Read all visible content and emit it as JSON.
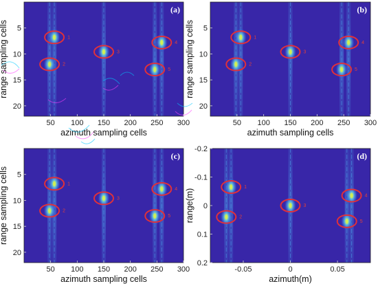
{
  "colors": {
    "background": "#3826a8",
    "target_ring": "#e0303a",
    "streak": "#4a9ee8",
    "hot": "#d6f24a",
    "artifact": "#00c8ff"
  },
  "chart_data": [
    {
      "type": "heatmap",
      "panel": "(a)",
      "xlabel": "azimuth sampling cells",
      "ylabel": "range sampling cells",
      "xlim": [
        0,
        300
      ],
      "ylim": [
        0,
        22
      ],
      "y_reversed": true,
      "xticks": [
        50,
        100,
        150,
        200,
        250,
        300
      ],
      "yticks": [
        5,
        10,
        15,
        20
      ],
      "targets": [
        {
          "id": "1",
          "x": 57,
          "y": 6.8
        },
        {
          "id": "2",
          "x": 48,
          "y": 12.0
        },
        {
          "id": "3",
          "x": 150,
          "y": 9.6
        },
        {
          "id": "4",
          "x": 259,
          "y": 7.8
        },
        {
          "id": "5",
          "x": 246,
          "y": 13.0
        }
      ]
    },
    {
      "type": "heatmap",
      "panel": "(b)",
      "xlabel": "azimuth sampling cells",
      "ylabel": "range sampling cells",
      "xlim": [
        0,
        300
      ],
      "ylim": [
        0,
        22
      ],
      "y_reversed": true,
      "xticks": [
        50,
        100,
        150,
        200,
        250,
        300
      ],
      "yticks": [
        5,
        10,
        15,
        20
      ],
      "targets": [
        {
          "id": "1",
          "x": 57,
          "y": 6.8
        },
        {
          "id": "2",
          "x": 48,
          "y": 12.0
        },
        {
          "id": "3",
          "x": 150,
          "y": 9.6
        },
        {
          "id": "4",
          "x": 259,
          "y": 7.8
        },
        {
          "id": "5",
          "x": 246,
          "y": 13.0
        }
      ]
    },
    {
      "type": "heatmap",
      "panel": "(c)",
      "xlabel": "azimuth sampling cells",
      "ylabel": "range sampling cells",
      "xlim": [
        0,
        300
      ],
      "ylim": [
        0,
        22
      ],
      "y_reversed": true,
      "xticks": [
        50,
        100,
        150,
        200,
        250,
        300
      ],
      "yticks": [
        5,
        10,
        15,
        20
      ],
      "targets": [
        {
          "id": "1",
          "x": 57,
          "y": 6.8
        },
        {
          "id": "2",
          "x": 48,
          "y": 12.0
        },
        {
          "id": "3",
          "x": 150,
          "y": 9.6
        },
        {
          "id": "4",
          "x": 259,
          "y": 7.8
        },
        {
          "id": "5",
          "x": 246,
          "y": 13.0
        }
      ]
    },
    {
      "type": "heatmap",
      "panel": "(d)",
      "xlabel": "azimuth(m)",
      "ylabel": "range(m)",
      "xlim": [
        -0.085,
        0.085
      ],
      "ylim": [
        -0.2,
        0.2
      ],
      "y_reversed": true,
      "xticks": [
        -0.05,
        0,
        0.05
      ],
      "xticklabels": [
        "-0.05",
        "0",
        "0.05"
      ],
      "yticks": [
        -0.2,
        -0.1,
        0,
        0.1,
        0.2
      ],
      "yticklabels": [
        "-0.2",
        "-0.1",
        "0",
        "0.1",
        "0.2"
      ],
      "targets": [
        {
          "id": "1",
          "x": -0.063,
          "y": -0.065
        },
        {
          "id": "2",
          "x": -0.068,
          "y": 0.04
        },
        {
          "id": "3",
          "x": 0.0,
          "y": 0.0
        },
        {
          "id": "4",
          "x": 0.065,
          "y": -0.035
        },
        {
          "id": "5",
          "x": 0.06,
          "y": 0.055
        }
      ]
    }
  ]
}
